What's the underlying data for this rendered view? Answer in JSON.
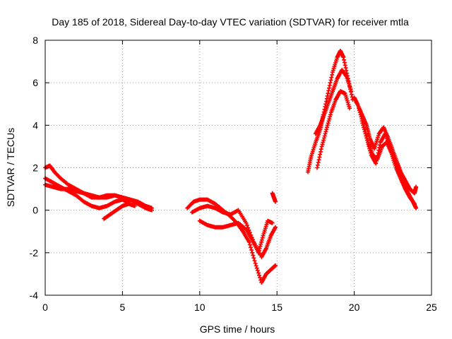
{
  "chart_data": {
    "type": "scatter",
    "title": "Day 185 of 2018, Sidereal Day-to-day VTEC variation (SDTVAR) for receiver mtla",
    "xlabel": "GPS time / hours",
    "ylabel": "SDTVAR / TECUs",
    "xlim": [
      0,
      25
    ],
    "ylim": [
      -4,
      8
    ],
    "x_ticks": [
      0,
      5,
      10,
      15,
      20,
      25
    ],
    "y_ticks": [
      -4,
      -2,
      0,
      2,
      4,
      6,
      8
    ],
    "grid": true,
    "marker": "+",
    "series": [
      {
        "name": "SDTVAR",
        "color": "#ff0000",
        "tracks": [
          {
            "x": [
              0.0,
              0.3,
              0.6,
              1.0,
              1.5,
              2.0,
              2.5,
              3.0,
              3.5,
              4.0,
              4.5,
              5.0,
              5.5,
              6.0,
              6.5,
              6.9
            ],
            "y": [
              2.0,
              2.1,
              1.8,
              1.5,
              1.2,
              1.0,
              0.8,
              0.6,
              0.6,
              0.7,
              0.7,
              0.6,
              0.5,
              0.4,
              0.2,
              0.1
            ]
          },
          {
            "x": [
              0.0,
              0.5,
              1.0,
              1.5,
              2.0,
              2.5,
              3.0,
              3.5,
              4.0,
              4.5,
              5.0,
              5.5
            ],
            "y": [
              1.5,
              1.3,
              1.1,
              0.9,
              0.7,
              0.4,
              0.2,
              0.1,
              0.2,
              0.4,
              0.5,
              0.3
            ]
          },
          {
            "x": [
              0.0,
              0.5,
              1.0,
              1.5,
              2.0,
              2.5,
              3.0,
              3.5,
              4.0,
              4.5,
              5.0,
              5.5,
              6.0,
              6.5,
              6.9
            ],
            "y": [
              1.2,
              1.1,
              1.0,
              1.0,
              0.9,
              0.8,
              0.7,
              0.6,
              0.6,
              0.7,
              0.6,
              0.5,
              0.3,
              0.1,
              0.0
            ]
          },
          {
            "x": [
              3.8,
              4.2,
              4.6,
              5.0,
              5.4,
              5.8
            ],
            "y": [
              -0.4,
              -0.2,
              0.0,
              0.2,
              0.3,
              0.2
            ]
          },
          {
            "x": [
              9.2,
              9.6,
              10.0,
              10.5,
              11.0,
              11.5,
              12.0,
              12.4,
              12.8,
              13.2,
              13.6,
              14.0,
              14.3,
              14.6,
              14.9
            ],
            "y": [
              0.1,
              0.4,
              0.5,
              0.5,
              0.3,
              0.0,
              -0.3,
              -0.6,
              -1.0,
              -1.5,
              -2.5,
              -3.4,
              -3.0,
              -2.8,
              -2.6
            ]
          },
          {
            "x": [
              9.5,
              10.0,
              10.5,
              11.0,
              11.5,
              12.0,
              12.5,
              13.0,
              13.5,
              14.0,
              14.3,
              14.6,
              14.9
            ],
            "y": [
              -0.1,
              0.1,
              0.2,
              0.1,
              -0.1,
              -0.2,
              0.0,
              -0.6,
              -1.5,
              -2.2,
              -1.8,
              -1.2,
              -0.8
            ]
          },
          {
            "x": [
              10.0,
              10.5,
              11.0,
              11.5,
              12.0,
              12.5,
              13.0,
              13.4,
              13.8,
              14.1,
              14.4,
              14.7
            ],
            "y": [
              -0.5,
              -0.7,
              -0.8,
              -0.8,
              -0.7,
              -0.6,
              -0.9,
              -1.4,
              -2.0,
              -1.2,
              -0.5,
              -0.6
            ]
          },
          {
            "x": [
              14.7,
              14.8,
              14.9
            ],
            "y": [
              0.8,
              0.6,
              0.4
            ]
          },
          {
            "x": [
              17.0,
              17.2,
              17.5,
              17.8,
              18.0,
              18.3,
              18.6,
              18.9,
              19.1,
              19.3,
              19.6,
              19.9
            ],
            "y": [
              1.8,
              2.5,
              3.2,
              3.8,
              4.5,
              5.5,
              6.5,
              7.2,
              7.5,
              7.2,
              6.2,
              5.2
            ]
          },
          {
            "x": [
              17.5,
              17.8,
              18.0,
              18.3,
              18.6,
              18.9,
              19.2,
              19.5,
              19.8
            ],
            "y": [
              3.6,
              4.0,
              4.4,
              5.0,
              5.6,
              6.2,
              6.6,
              6.3,
              5.6
            ]
          },
          {
            "x": [
              17.6,
              17.9,
              18.2,
              18.5,
              18.8,
              19.1,
              19.4,
              19.7
            ],
            "y": [
              2.0,
              3.0,
              3.8,
              4.6,
              5.2,
              5.6,
              5.5,
              4.8
            ]
          },
          {
            "x": [
              20.0,
              20.2,
              20.5,
              20.8,
              21.0,
              21.3,
              21.6,
              21.9,
              22.2,
              22.5,
              22.8,
              23.0,
              23.3,
              23.6,
              23.9,
              24.0
            ],
            "y": [
              5.3,
              5.0,
              4.5,
              4.0,
              3.4,
              2.9,
              3.6,
              3.9,
              3.4,
              2.8,
              2.2,
              1.8,
              1.4,
              1.0,
              0.8,
              1.1
            ]
          },
          {
            "x": [
              20.5,
              20.8,
              21.1,
              21.4,
              21.7,
              22.0,
              22.3,
              22.6,
              22.9,
              23.2,
              23.5,
              23.8,
              24.0
            ],
            "y": [
              4.2,
              3.4,
              2.6,
              2.2,
              3.2,
              3.6,
              3.0,
              2.4,
              1.8,
              1.2,
              0.8,
              0.4,
              0.1
            ]
          },
          {
            "x": [
              20.3,
              20.6,
              20.9,
              21.2,
              21.5,
              21.8,
              22.1,
              22.4,
              22.7,
              23.0,
              23.3,
              23.6,
              23.9
            ],
            "y": [
              4.8,
              4.0,
              3.2,
              2.6,
              2.4,
              3.0,
              3.2,
              2.7,
              2.0,
              1.5,
              1.0,
              0.6,
              0.3
            ]
          }
        ]
      }
    ]
  }
}
